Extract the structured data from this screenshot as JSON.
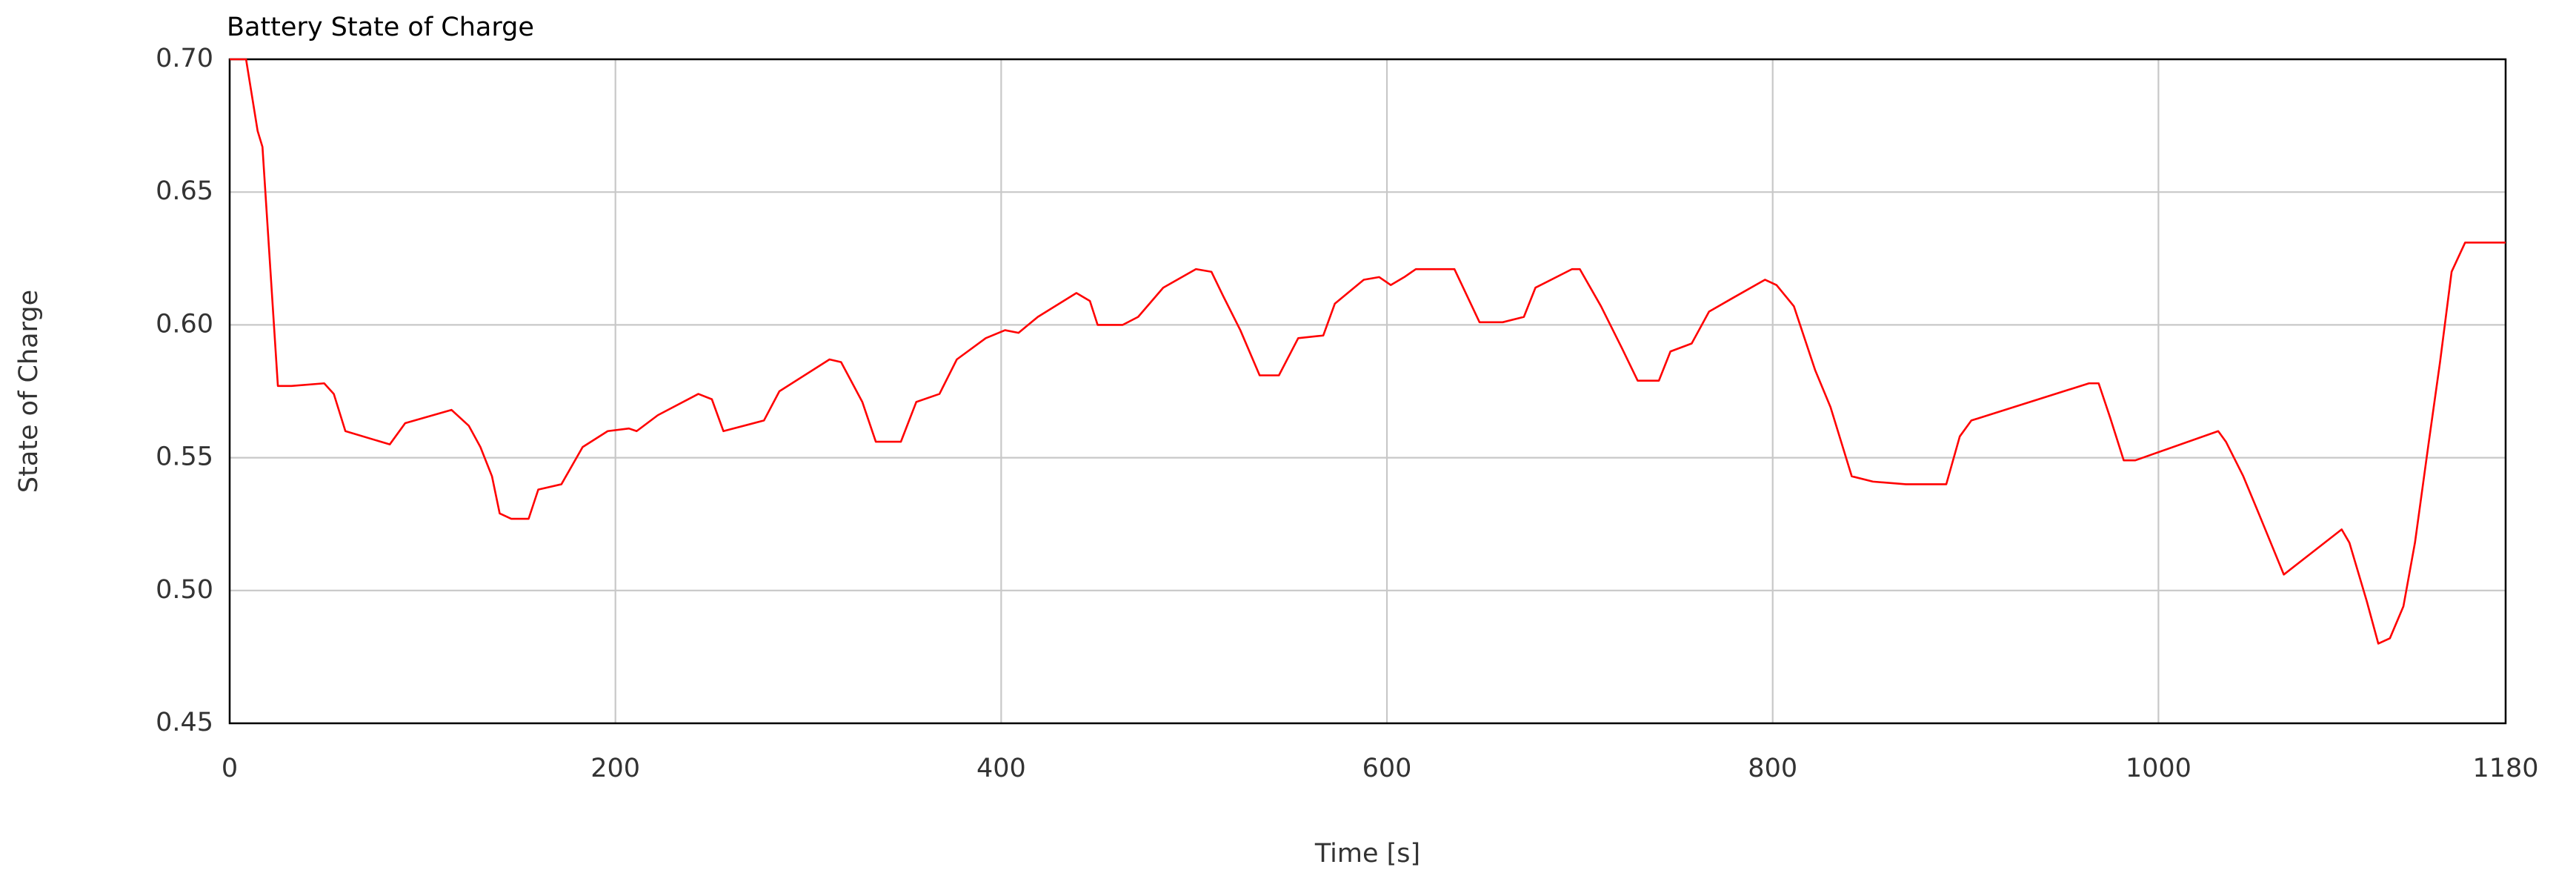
{
  "chart_data": {
    "type": "line",
    "title": "Battery State of Charge",
    "x_label": "Time [s]",
    "y_label": "State of Charge",
    "x": [
      0,
      8.5,
      14.5,
      17,
      25,
      32,
      49,
      54,
      60,
      83,
      91,
      115,
      124,
      130,
      136,
      140,
      146,
      155,
      160,
      172,
      183,
      196,
      207,
      211,
      222,
      243,
      250,
      256,
      277,
      285,
      311,
      317,
      328,
      335,
      348,
      356,
      368,
      377,
      392,
      402,
      409,
      419,
      439,
      446,
      450,
      463,
      471,
      484,
      501,
      509,
      515,
      524,
      534,
      544,
      554,
      567,
      573,
      588,
      596,
      602,
      609,
      615,
      635,
      648,
      660,
      671,
      677,
      696,
      700,
      711,
      722,
      730,
      741,
      747,
      758,
      767,
      779,
      796,
      802,
      811,
      822,
      830,
      841,
      852,
      869,
      890,
      897,
      903,
      964,
      969,
      975,
      982,
      988,
      1031,
      1035,
      1044,
      1052,
      1065,
      1095,
      1099,
      1108,
      1114,
      1120,
      1127,
      1133,
      1140,
      1146,
      1152,
      1159,
      1180
    ],
    "values": [
      0.7,
      0.7,
      0.673,
      0.667,
      0.577,
      0.577,
      0.578,
      0.574,
      0.56,
      0.555,
      0.563,
      0.568,
      0.562,
      0.554,
      0.543,
      0.529,
      0.527,
      0.527,
      0.538,
      0.54,
      0.554,
      0.56,
      0.561,
      0.56,
      0.566,
      0.574,
      0.572,
      0.56,
      0.564,
      0.575,
      0.587,
      0.586,
      0.571,
      0.556,
      0.556,
      0.571,
      0.574,
      0.587,
      0.595,
      0.598,
      0.597,
      0.603,
      0.612,
      0.609,
      0.6,
      0.6,
      0.603,
      0.614,
      0.621,
      0.62,
      0.611,
      0.598,
      0.581,
      0.581,
      0.595,
      0.596,
      0.608,
      0.617,
      0.618,
      0.615,
      0.618,
      0.621,
      0.621,
      0.601,
      0.601,
      0.603,
      0.614,
      0.621,
      0.621,
      0.607,
      0.591,
      0.579,
      0.579,
      0.59,
      0.593,
      0.605,
      0.61,
      0.617,
      0.615,
      0.607,
      0.583,
      0.569,
      0.543,
      0.541,
      0.54,
      0.54,
      0.558,
      0.564,
      0.578,
      0.578,
      0.565,
      0.549,
      0.549,
      0.56,
      0.556,
      0.543,
      0.529,
      0.506,
      0.523,
      0.518,
      0.496,
      0.48,
      0.482,
      0.494,
      0.518,
      0.555,
      0.586,
      0.62,
      0.631,
      0.631
    ],
    "color": "#ff0000",
    "xlim": [
      0,
      1180
    ],
    "xticks": [
      0,
      200,
      400,
      600,
      800,
      1000,
      1180
    ],
    "ylim": [
      0.45,
      0.7
    ],
    "yticks": [
      0.45,
      {
        "value": 0.5,
        "label": "0.50"
      },
      0.55,
      {
        "value": 0.6,
        "label": "0.60"
      },
      0.65,
      {
        "value": 0.7,
        "label": "0.70"
      }
    ],
    "grid": true
  }
}
